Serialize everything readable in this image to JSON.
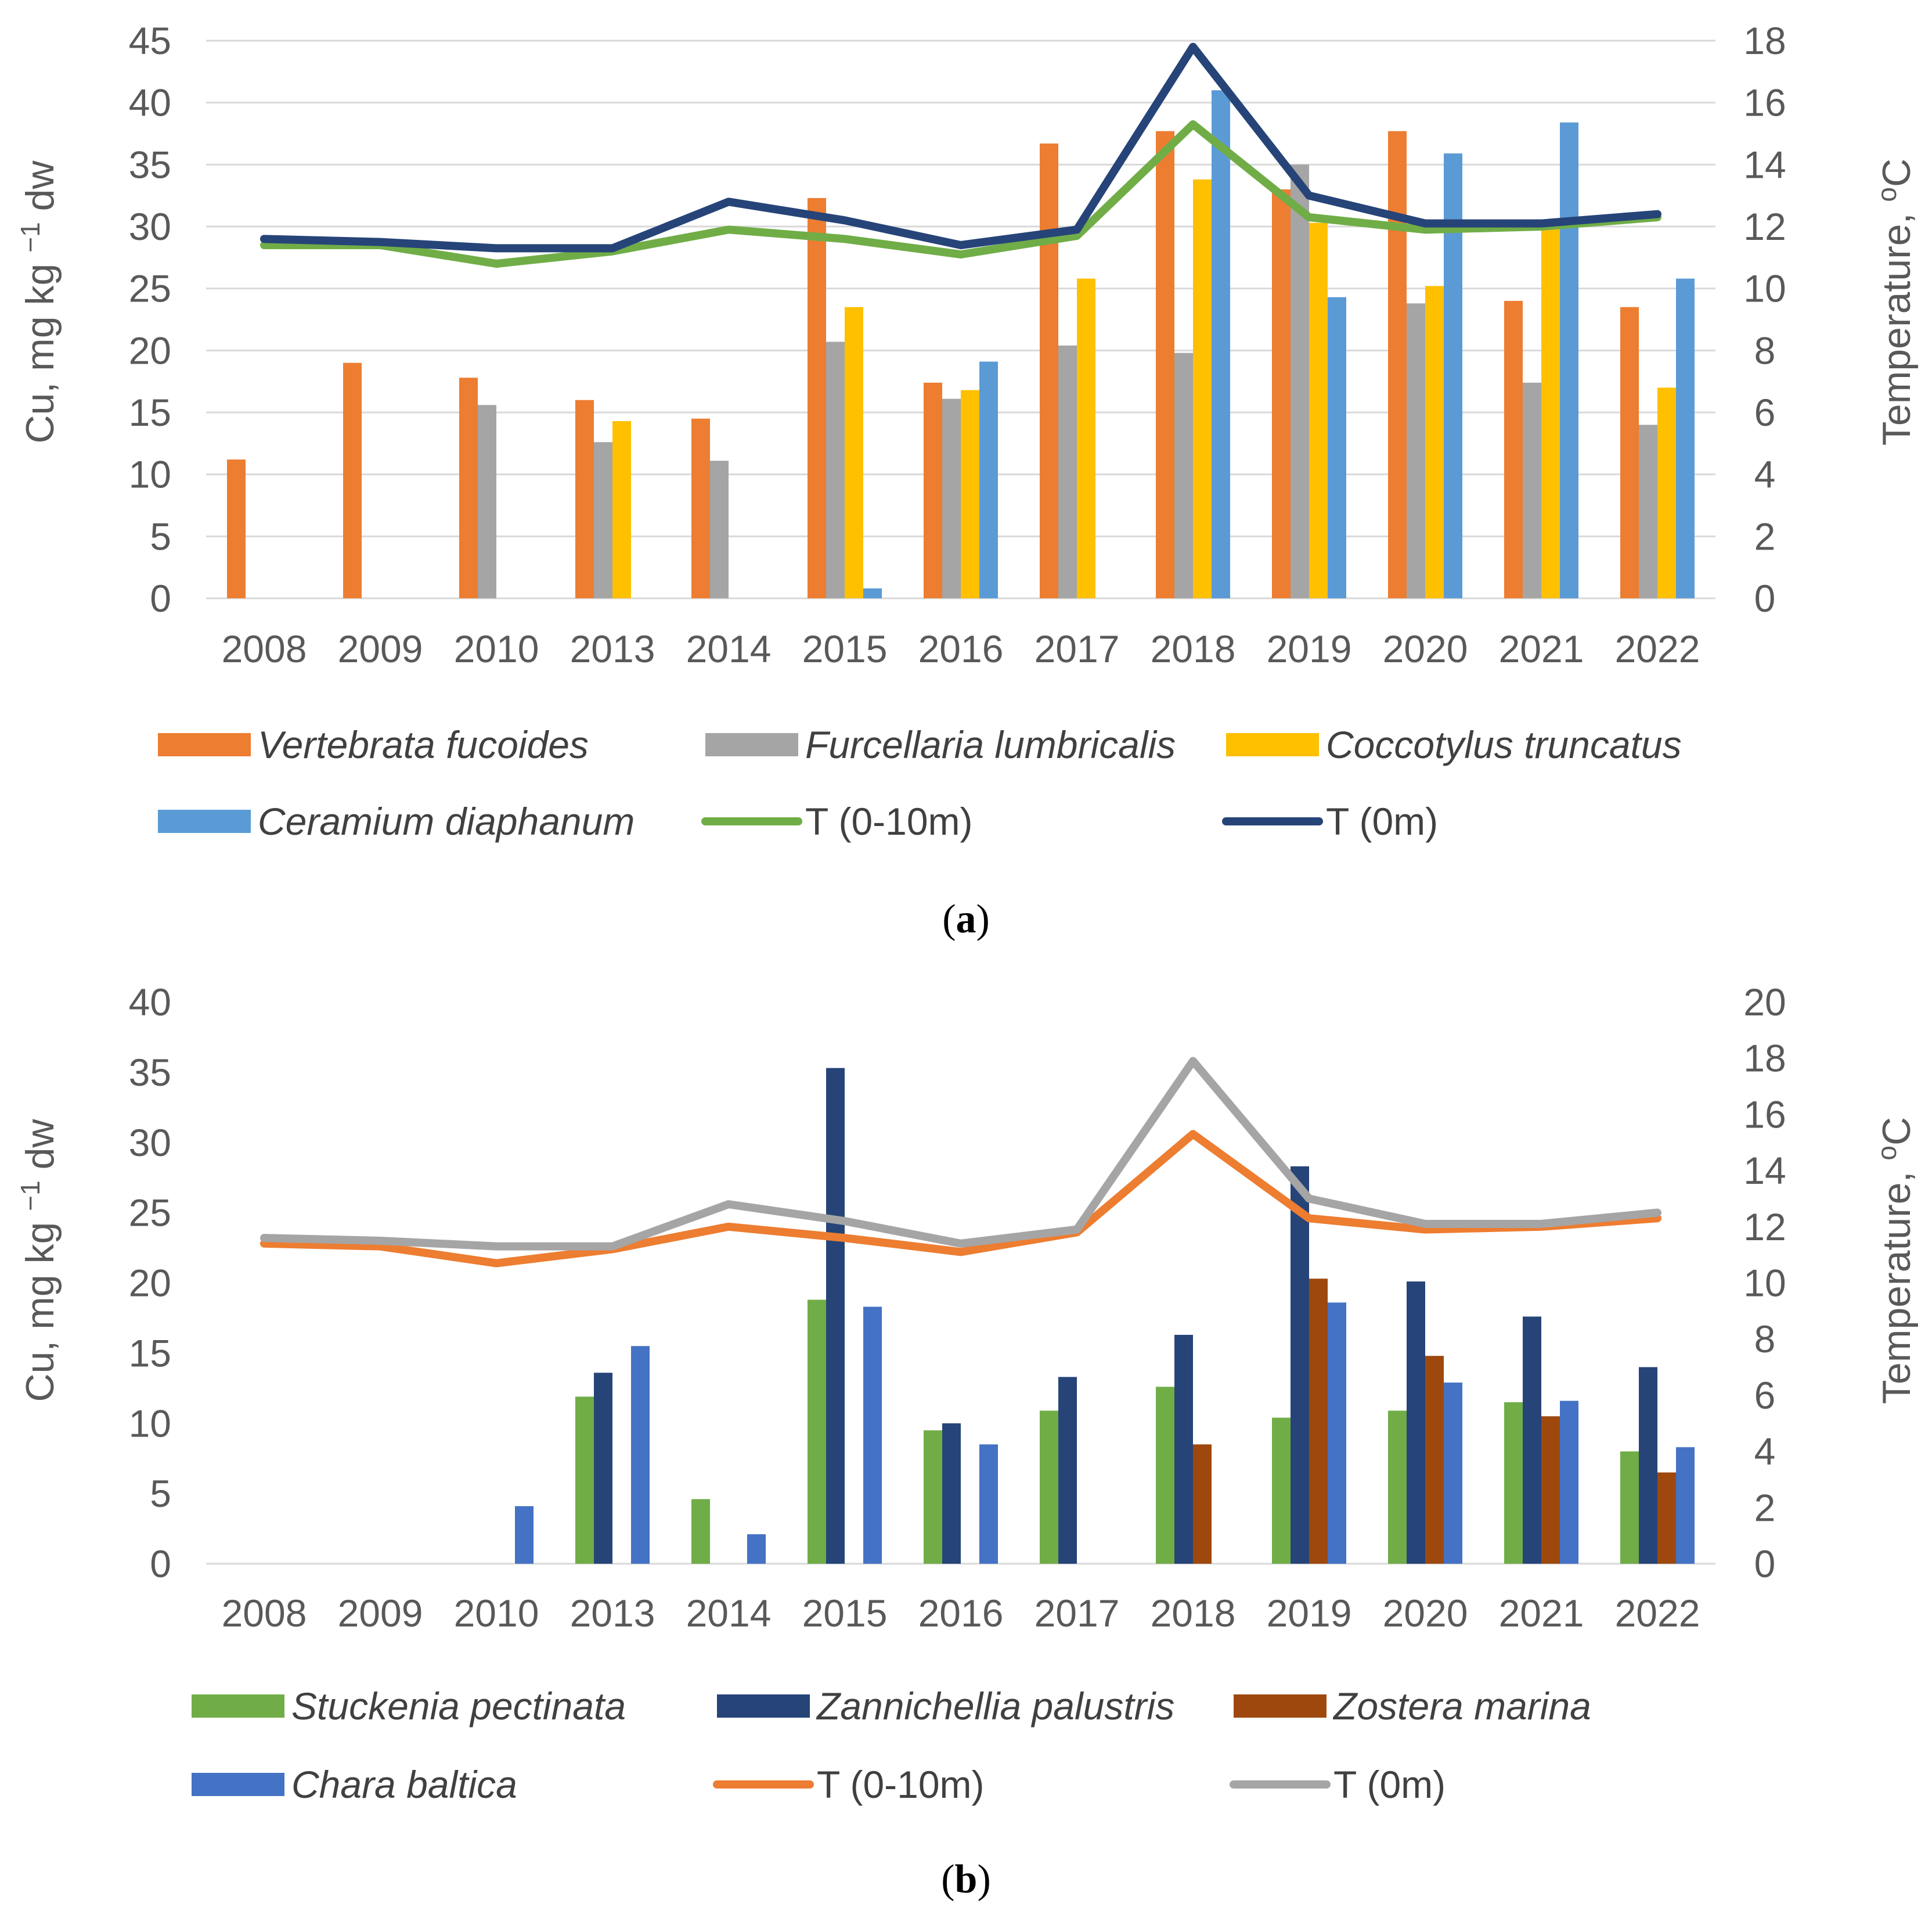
{
  "colors": {
    "orange": "#ED7D31",
    "gray": "#A5A5A5",
    "gold": "#FFC000",
    "lightblue": "#5B9BD5",
    "green": "#70AD47",
    "navy": "#264478",
    "brown": "#9E480E",
    "blue": "#4472C4",
    "darkline": "#203864",
    "grayline": "#A5A5A5",
    "grid": "#D9D9D9"
  },
  "chart_data": [
    {
      "panel": "a",
      "panel_label": "(a)",
      "type": "bar",
      "ylabel": "Cu, mg kg −1 dw",
      "y2label": "Temperature, °C",
      "ylim": [
        0,
        45
      ],
      "y2lim": [
        0,
        18
      ],
      "yticks": [
        "0",
        "5",
        "10",
        "15",
        "20",
        "25",
        "30",
        "35",
        "40",
        "45"
      ],
      "y2ticks": [
        "0",
        "2",
        "4",
        "6",
        "8",
        "10",
        "12",
        "14",
        "16",
        "18"
      ],
      "grid": true,
      "legend_position": "bottom",
      "categories": [
        "2008",
        "2009",
        "2010",
        "2013",
        "2014",
        "2015",
        "2016",
        "2017",
        "2018",
        "2019",
        "2020",
        "2021",
        "2022"
      ],
      "series": [
        {
          "name": "Vertebrata fucoides",
          "italic": true,
          "kind": "bar",
          "color": "#ED7D31",
          "values": [
            11.2,
            19,
            17.8,
            16,
            14.5,
            32.3,
            17.4,
            36.7,
            37.7,
            33,
            37.7,
            24,
            23.5
          ]
        },
        {
          "name": "Furcellaria lumbricalis",
          "italic": true,
          "kind": "bar",
          "color": "#A5A5A5",
          "values": [
            null,
            null,
            15.6,
            12.6,
            11.1,
            20.7,
            16.1,
            20.4,
            19.8,
            35,
            23.8,
            17.4,
            14
          ]
        },
        {
          "name": "Coccotylus truncatus",
          "italic": true,
          "kind": "bar",
          "color": "#FFC000",
          "values": [
            null,
            null,
            null,
            14.3,
            null,
            23.5,
            16.8,
            25.8,
            33.8,
            30.3,
            25.2,
            30.3,
            17
          ]
        },
        {
          "name": "Ceramium diaphanum",
          "italic": true,
          "kind": "bar",
          "color": "#5B9BD5",
          "values": [
            null,
            null,
            null,
            null,
            null,
            0.8,
            19.1,
            null,
            41,
            24.3,
            35.9,
            38.4,
            25.8
          ]
        },
        {
          "name": "T (0-10m)",
          "italic": false,
          "kind": "line",
          "axis": "y2",
          "color": "#70AD47",
          "values": [
            11.4,
            11.4,
            10.8,
            11.2,
            11.9,
            11.6,
            11.1,
            11.7,
            15.3,
            12.3,
            11.9,
            12,
            12.3
          ]
        },
        {
          "name": "T (0m)",
          "italic": false,
          "kind": "line",
          "axis": "y2",
          "color": "#264478",
          "values": [
            11.6,
            11.5,
            11.3,
            11.3,
            12.8,
            12.2,
            11.4,
            11.9,
            17.8,
            13,
            12.1,
            12.1,
            12.4
          ]
        }
      ]
    },
    {
      "panel": "b",
      "panel_label": "(b)",
      "type": "bar",
      "ylabel": "Cu, mg kg −1 dw",
      "y2label": "Temperature, °C",
      "ylim": [
        0,
        40
      ],
      "y2lim": [
        0,
        20
      ],
      "yticks": [
        "0",
        "5",
        "10",
        "15",
        "20",
        "25",
        "30",
        "35",
        "40"
      ],
      "y2ticks": [
        "0",
        "2",
        "4",
        "6",
        "8",
        "10",
        "12",
        "14",
        "16",
        "18",
        "20"
      ],
      "grid": false,
      "legend_position": "bottom",
      "categories": [
        "2008",
        "2009",
        "2010",
        "2013",
        "2014",
        "2015",
        "2016",
        "2017",
        "2018",
        "2019",
        "2020",
        "2021",
        "2022"
      ],
      "series": [
        {
          "name": "Stuckenia pectinata",
          "italic": true,
          "kind": "bar",
          "color": "#70AD47",
          "values": [
            null,
            null,
            null,
            11.9,
            4.6,
            18.8,
            9.5,
            10.9,
            12.6,
            10.4,
            10.9,
            11.5,
            8
          ]
        },
        {
          "name": "Zannichellia palustris",
          "italic": true,
          "kind": "bar",
          "color": "#264478",
          "values": [
            null,
            null,
            null,
            13.6,
            null,
            35.3,
            10,
            13.3,
            16.3,
            28.3,
            20.1,
            17.6,
            14
          ]
        },
        {
          "name": "Zostera marina",
          "italic": true,
          "kind": "bar",
          "color": "#9E480E",
          "values": [
            null,
            null,
            null,
            null,
            null,
            null,
            null,
            null,
            8.5,
            20.3,
            14.8,
            10.5,
            6.5
          ]
        },
        {
          "name": "Chara baltica",
          "italic": true,
          "kind": "bar",
          "color": "#4472C4",
          "values": [
            null,
            null,
            4.1,
            15.5,
            2.1,
            18.3,
            8.5,
            null,
            null,
            18.6,
            12.9,
            11.6,
            8.3
          ]
        },
        {
          "name": "T (0-10m)",
          "italic": false,
          "kind": "line",
          "axis": "y2",
          "color": "#ED7D31",
          "values": [
            11.4,
            11.3,
            10.7,
            11.2,
            12,
            11.6,
            11.1,
            11.8,
            15.3,
            12.3,
            11.9,
            12,
            12.3
          ]
        },
        {
          "name": "T (0m)",
          "italic": false,
          "kind": "line",
          "axis": "y2",
          "color": "#A5A5A5",
          "values": [
            11.6,
            11.5,
            11.3,
            11.3,
            12.8,
            12.2,
            11.4,
            11.9,
            17.9,
            13,
            12.1,
            12.1,
            12.5
          ]
        }
      ]
    }
  ]
}
